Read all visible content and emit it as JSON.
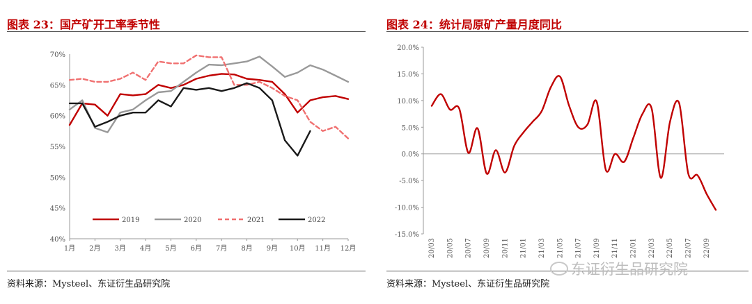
{
  "left": {
    "title": "图表 23：国产矿开工率季节性",
    "source": "资料来源：Mysteel、东证衍生品研究院"
  },
  "right": {
    "title": "图表 24：统计局原矿产量月度同比",
    "source": "资料来源：Mysteel、东证衍生品研究院"
  },
  "watermark": "东证衍生品研究院",
  "colors": {
    "title": "#c00000",
    "s2019": "#c00000",
    "s2020": "#999999",
    "s2021": "#f07070",
    "s2022": "#1a1a1a",
    "yoy": "#c00000"
  },
  "chart_data": [
    {
      "type": "line",
      "title": "国产矿开工率季节性",
      "categories": [
        "1月",
        "2月",
        "3月",
        "4月",
        "5月",
        "6月",
        "7月",
        "8月",
        "9月",
        "10月",
        "11月",
        "12月"
      ],
      "x": [
        1,
        1.5,
        2,
        2.5,
        3,
        3.5,
        4,
        4.5,
        5,
        5.5,
        6,
        6.5,
        7,
        7.5,
        8,
        8.5,
        9,
        9.5,
        10,
        10.5,
        11,
        11.5,
        12
      ],
      "ylim": [
        40,
        70
      ],
      "y_tick_labels": [
        "40%",
        "45%",
        "50%",
        "55%",
        "60%",
        "65%",
        "70%"
      ],
      "legend_position": "bottom-inside",
      "grid": false,
      "series": [
        {
          "name": "2019",
          "style": "solid",
          "values": [
            58.5,
            62.0,
            61.8,
            60.0,
            63.5,
            63.3,
            63.5,
            65.0,
            64.5,
            65.0,
            66.0,
            66.5,
            66.8,
            66.7,
            66.0,
            65.8,
            65.5,
            63.5,
            60.5,
            62.5,
            63.0,
            63.2,
            62.7
          ]
        },
        {
          "name": "2020",
          "style": "solid",
          "values": [
            61.0,
            62.5,
            58.0,
            57.3,
            60.5,
            61.0,
            62.5,
            63.8,
            64.0,
            65.5,
            67.0,
            68.3,
            68.2,
            68.5,
            68.8,
            69.6,
            68.0,
            66.3,
            67.0,
            68.2,
            67.5,
            66.5,
            65.5
          ]
        },
        {
          "name": "2021",
          "style": "dashed",
          "values": [
            65.8,
            66.0,
            65.5,
            65.5,
            66.0,
            67.0,
            65.8,
            68.8,
            68.5,
            68.5,
            69.8,
            69.5,
            69.5,
            65.0,
            65.0,
            65.5,
            64.5,
            63.2,
            62.5,
            59.0,
            57.5,
            58.2,
            56.3
          ]
        },
        {
          "name": "2022",
          "style": "solid",
          "values": [
            62.0,
            62.0,
            58.2,
            59.0,
            60.0,
            60.5,
            60.5,
            62.5,
            61.5,
            64.5,
            64.2,
            64.5,
            64.0,
            64.5,
            65.3,
            64.5,
            62.5,
            56.0,
            53.5,
            57.5,
            null,
            null,
            null
          ]
        }
      ]
    },
    {
      "type": "line",
      "title": "统计局原矿产量月度同比",
      "categories": [
        "20/03",
        "20/04",
        "20/05",
        "20/06",
        "20/07",
        "20/08",
        "20/09",
        "20/10",
        "20/11",
        "20/12",
        "21/01",
        "21/02",
        "21/03",
        "21/04",
        "21/05",
        "21/06",
        "21/07",
        "21/08",
        "21/09",
        "21/10",
        "21/11",
        "21/12",
        "22/01",
        "22/02",
        "22/03",
        "22/04",
        "22/05",
        "22/06",
        "22/07",
        "22/08",
        "22/09",
        "22/10"
      ],
      "x_tick_labels": [
        "20/03",
        "20/05",
        "20/07",
        "20/09",
        "20/11",
        "21/01",
        "21/03",
        "21/05",
        "21/07",
        "21/09",
        "21/11",
        "22/01",
        "22/03",
        "22/05",
        "22/07",
        "22/09"
      ],
      "ylim": [
        -15,
        20
      ],
      "y_tick_labels": [
        "-15.0%",
        "-10.0%",
        "-5.0%",
        "0.0%",
        "5.0%",
        "10.0%",
        "15.0%",
        "20.0%"
      ],
      "grid": false,
      "series": [
        {
          "name": "",
          "values": [
            9.0,
            11.2,
            8.3,
            8.5,
            0.2,
            4.8,
            -3.7,
            0.7,
            -3.5,
            1.5,
            4.0,
            6.0,
            8.0,
            12.5,
            14.5,
            9.0,
            5.0,
            5.5,
            9.8,
            -3.0,
            0.0,
            -1.5,
            3.0,
            7.5,
            8.5,
            -4.5,
            6.0,
            9.5,
            -3.7,
            -4.0,
            -7.5,
            -10.5
          ]
        }
      ]
    }
  ]
}
